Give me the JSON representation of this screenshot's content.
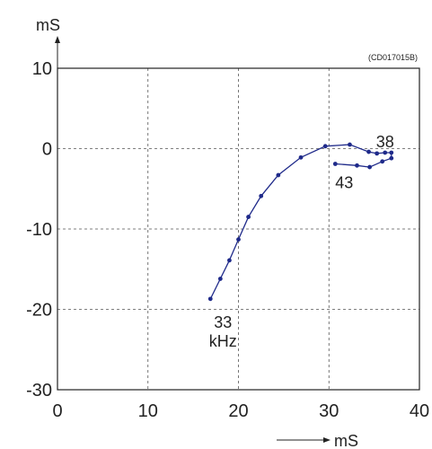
{
  "chart_data": {
    "type": "line",
    "code": "(CD017015B)",
    "x_unit": "mS",
    "y_unit": "mS",
    "xlim": [
      0,
      40
    ],
    "ylim": [
      -30,
      10
    ],
    "x_ticks": [
      0,
      10,
      20,
      30,
      40
    ],
    "y_ticks": [
      10,
      0,
      -10,
      -20,
      -30
    ],
    "grid": true,
    "series": [
      {
        "color": "#1f2a8a",
        "points": [
          [
            16.9,
            -18.7
          ],
          [
            18.0,
            -16.2
          ],
          [
            19.0,
            -13.9
          ],
          [
            20.0,
            -11.3
          ],
          [
            21.1,
            -8.5
          ],
          [
            22.5,
            -5.9
          ],
          [
            24.4,
            -3.3
          ],
          [
            26.9,
            -1.1
          ],
          [
            29.6,
            0.3
          ],
          [
            32.3,
            0.5
          ],
          [
            34.4,
            -0.4
          ],
          [
            35.3,
            -0.6
          ],
          [
            36.2,
            -0.5
          ],
          [
            36.9,
            -0.5
          ],
          [
            36.9,
            -1.2
          ],
          [
            35.9,
            -1.6
          ],
          [
            34.5,
            -2.3
          ],
          [
            33.1,
            -2.1
          ],
          [
            30.7,
            -1.9
          ]
        ]
      }
    ],
    "annotations": [
      {
        "text": "33",
        "x": 16.9,
        "y": -18.7
      },
      {
        "text": "kHz",
        "x": 16.9,
        "y": -18.7
      },
      {
        "text": "38",
        "x": 36.2,
        "y": -0.5
      },
      {
        "text": "43",
        "x": 30.7,
        "y": -1.9
      }
    ]
  }
}
